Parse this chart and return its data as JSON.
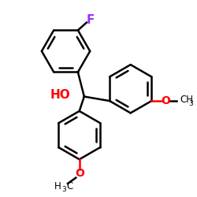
{
  "bg_color": "#ffffff",
  "bond_color": "#000000",
  "F_color": "#9b30ff",
  "HO_color": "#ff0000",
  "O_color": "#ff0000",
  "line_width": 1.8,
  "figsize": [
    2.5,
    2.5
  ],
  "dpi": 100,
  "xlim": [
    0,
    10
  ],
  "ylim": [
    0,
    10
  ]
}
